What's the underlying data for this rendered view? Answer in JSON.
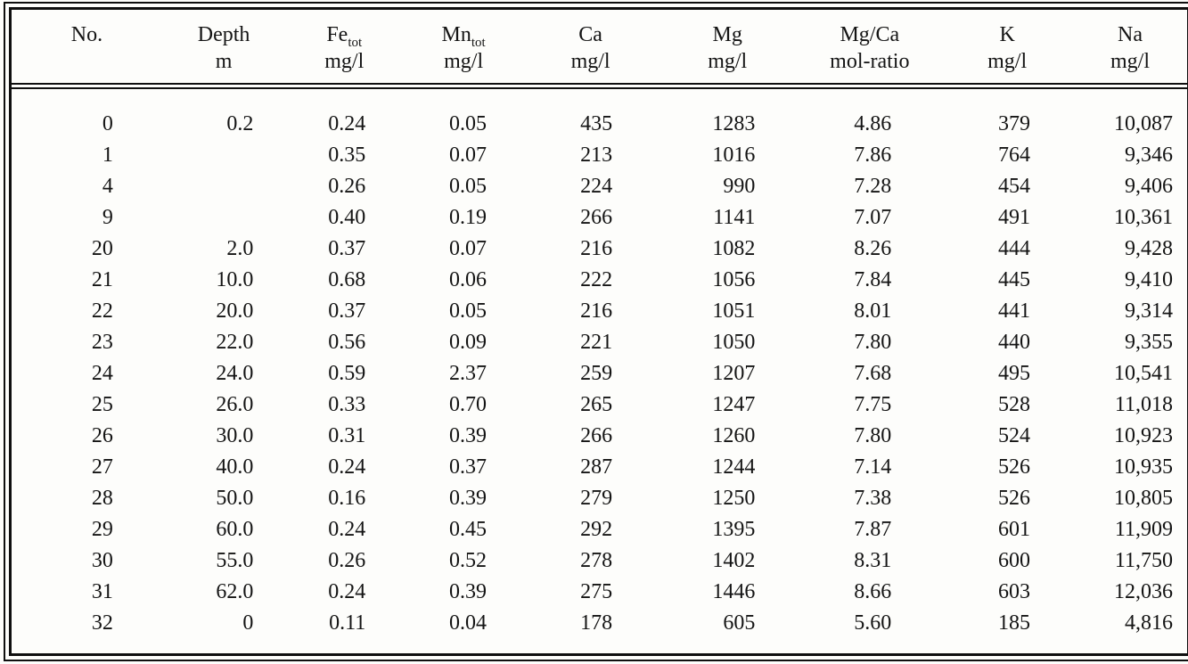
{
  "table": {
    "columns": [
      {
        "name": "No.",
        "unit": ""
      },
      {
        "name": "Depth",
        "unit": "m"
      },
      {
        "name": "Fe",
        "sub": "tot",
        "unit": "mg/l"
      },
      {
        "name": "Mn",
        "sub": "tot",
        "unit": "mg/l"
      },
      {
        "name": "Ca",
        "unit": "mg/l"
      },
      {
        "name": "Mg",
        "unit": "mg/l"
      },
      {
        "name": "Mg/Ca",
        "unit": "mol-ratio"
      },
      {
        "name": "K",
        "unit": "mg/l"
      },
      {
        "name": "Na",
        "unit": "mg/l"
      }
    ],
    "rows": [
      [
        "0",
        "0.2",
        "0.24",
        "0.05",
        "435",
        "1283",
        "4.86",
        "379",
        "10,087"
      ],
      [
        "1",
        "",
        "0.35",
        "0.07",
        "213",
        "1016",
        "7.86",
        "764",
        "9,346"
      ],
      [
        "4",
        "",
        "0.26",
        "0.05",
        "224",
        "990",
        "7.28",
        "454",
        "9,406"
      ],
      [
        "9",
        "",
        "0.40",
        "0.19",
        "266",
        "1141",
        "7.07",
        "491",
        "10,361"
      ],
      [
        "20",
        "2.0",
        "0.37",
        "0.07",
        "216",
        "1082",
        "8.26",
        "444",
        "9,428"
      ],
      [
        "21",
        "10.0",
        "0.68",
        "0.06",
        "222",
        "1056",
        "7.84",
        "445",
        "9,410"
      ],
      [
        "22",
        "20.0",
        "0.37",
        "0.05",
        "216",
        "1051",
        "8.01",
        "441",
        "9,314"
      ],
      [
        "23",
        "22.0",
        "0.56",
        "0.09",
        "221",
        "1050",
        "7.80",
        "440",
        "9,355"
      ],
      [
        "24",
        "24.0",
        "0.59",
        "2.37",
        "259",
        "1207",
        "7.68",
        "495",
        "10,541"
      ],
      [
        "25",
        "26.0",
        "0.33",
        "0.70",
        "265",
        "1247",
        "7.75",
        "528",
        "11,018"
      ],
      [
        "26",
        "30.0",
        "0.31",
        "0.39",
        "266",
        "1260",
        "7.80",
        "524",
        "10,923"
      ],
      [
        "27",
        "40.0",
        "0.24",
        "0.37",
        "287",
        "1244",
        "7.14",
        "526",
        "10,935"
      ],
      [
        "28",
        "50.0",
        "0.16",
        "0.39",
        "279",
        "1250",
        "7.38",
        "526",
        "10,805"
      ],
      [
        "29",
        "60.0",
        "0.24",
        "0.45",
        "292",
        "1395",
        "7.87",
        "601",
        "11,909"
      ],
      [
        "30",
        "55.0",
        "0.26",
        "0.52",
        "278",
        "1402",
        "8.31",
        "600",
        "11,750"
      ],
      [
        "31",
        "62.0",
        "0.24",
        "0.39",
        "275",
        "1446",
        "8.66",
        "603",
        "12,036"
      ],
      [
        "32",
        "0",
        "0.11",
        "0.04",
        "178",
        "605",
        "5.60",
        "185",
        "4,816"
      ]
    ]
  }
}
